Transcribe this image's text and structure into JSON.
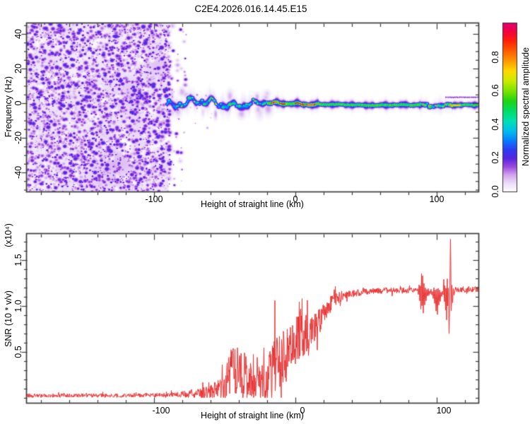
{
  "title": "C2E4.2026.016.14.45.E15",
  "chart_data": [
    {
      "type": "heatmap",
      "name": "doppler-spectrogram",
      "xlabel": "Height of straight line (km)",
      "ylabel": "Frequency (Hz)",
      "xlim": [
        -190,
        129.5
      ],
      "ylim": [
        -51,
        46
      ],
      "xticks": [
        -100,
        0,
        100
      ],
      "xtick_labels": [
        "-100",
        "0",
        "100"
      ],
      "xtick_minor_step": 20,
      "yticks": [
        -40,
        -20,
        0,
        20,
        40
      ],
      "ytick_labels": [
        "-40",
        "-20",
        "0",
        "20",
        "40"
      ],
      "ytick_minor_step": 5,
      "noise_region": {
        "x_range": [
          -190,
          -90
        ],
        "description": "dense purple speckle noise across all frequencies",
        "amp_range": [
          0.05,
          0.26
        ]
      },
      "sparse_speckles": {
        "x_range": [
          -93,
          -58
        ],
        "freq_range": [
          -25,
          25
        ],
        "count": 28
      },
      "band": {
        "x_range": [
          -91,
          129.5
        ],
        "center_freq": 0,
        "segments": [
          {
            "x": [
              -91,
              -30
            ],
            "blue_amp": 0.3,
            "blue_sig": 1.9,
            "core_amp": 0.5,
            "core_sig": 0.85,
            "core_jit": 2.4,
            "wiggle": 3.4,
            "fuzz": 0.06,
            "mode": "blob"
          },
          {
            "x": [
              -30,
              -20
            ],
            "blue_amp": 0.31,
            "blue_sig": 1.7,
            "core_amp": 0.54,
            "core_sig": 0.8,
            "core_jit": 1.6,
            "wiggle": 1.5,
            "fuzz": 0.055,
            "mode": "blob"
          },
          {
            "x": [
              -20,
              16
            ],
            "blue_amp": 0.33,
            "blue_sig": 1.9,
            "core_amp": 0.6,
            "core_sig": 1.25,
            "core_jit": 0.25,
            "wiggle": 0.8,
            "fuzz": 0.05,
            "mode": "cont"
          },
          {
            "x": [
              16,
              88
            ],
            "blue_amp": 0.3,
            "blue_sig": 1.75,
            "core_amp": 0.56,
            "core_sig": 1.1,
            "core_jit": 0.2,
            "wiggle": 0.3,
            "fuzz": 0.035,
            "mode": "cont"
          },
          {
            "x": [
              88,
              106
            ],
            "blue_amp": 0.3,
            "blue_sig": 1.4,
            "core_amp": 0.55,
            "core_sig": 0.8,
            "core_jit": 1.4,
            "wiggle": 0.9,
            "fuzz": 0.045,
            "mode": "blob"
          },
          {
            "x": [
              106,
              111
            ],
            "blue_amp": 0.32,
            "blue_sig": 1.8,
            "core_amp": 0.6,
            "core_sig": 0.95,
            "core_jit": 1.0,
            "wiggle": 0.6,
            "fuzz": 0.045,
            "mode": "blob"
          },
          {
            "x": [
              111,
              129.5
            ],
            "blue_amp": 0.3,
            "blue_sig": 1.6,
            "core_amp": 0.56,
            "core_sig": 1.0,
            "core_jit": 0.2,
            "wiggle": 0.2,
            "fuzz": 0.035,
            "mode": "cont"
          }
        ],
        "red_dashes": [
          [
            -17.5,
            -13.5
          ],
          [
            -11.5,
            -7.5
          ],
          [
            -0.5,
            6
          ],
          [
            7.5,
            14
          ]
        ],
        "orange_dots": [
          15.5
        ],
        "red_dots": [
          90,
          94.5,
          99.5,
          106,
          109
        ],
        "yellow_green_dots": [
          24,
          33,
          47,
          58,
          71,
          82
        ],
        "yellow_segment": [
          109.5,
          116.5
        ],
        "secondary_streak": {
          "x_range": [
            106,
            129.5
          ],
          "freq": 3.6,
          "amp": 0.17
        }
      },
      "colorbar": {
        "label": "Normalized spectral amplitude",
        "range": [
          0,
          1
        ],
        "ticks": [
          0,
          0.2,
          0.4,
          0.6,
          0.8
        ],
        "tick_labels": [
          "0.0",
          "0.2",
          "0.4",
          "0.6",
          "0.8"
        ],
        "colormap": [
          [
            0.0,
            "#ffffff"
          ],
          [
            0.05,
            "#ece0f8"
          ],
          [
            0.1,
            "#d2a6ee"
          ],
          [
            0.15,
            "#9a48dd"
          ],
          [
            0.2,
            "#5526e0"
          ],
          [
            0.25,
            "#2e3cf2"
          ],
          [
            0.3,
            "#0a78ff"
          ],
          [
            0.36,
            "#00bdee"
          ],
          [
            0.42,
            "#00e0b4"
          ],
          [
            0.48,
            "#00dd66"
          ],
          [
            0.54,
            "#22d414"
          ],
          [
            0.6,
            "#7ce400"
          ],
          [
            0.66,
            "#ccec00"
          ],
          [
            0.72,
            "#ffd900"
          ],
          [
            0.78,
            "#ff9600"
          ],
          [
            0.84,
            "#ff5a00"
          ],
          [
            0.9,
            "#ff1e0a"
          ],
          [
            0.96,
            "#f10048"
          ],
          [
            1.0,
            "#e4006e"
          ]
        ]
      }
    },
    {
      "type": "line",
      "name": "snr-profile",
      "xlabel": "Height of straight line (km)",
      "ylabel": "SNR (10 * v/v)",
      "ylabel_scale": "(x10⁴)",
      "color": "#e83030",
      "xlim": [
        -190,
        129.5
      ],
      "ylim": [
        -0.054,
        1.785
      ],
      "xticks": [
        -100,
        0,
        100
      ],
      "xtick_labels": [
        "-100",
        "0",
        "100"
      ],
      "xtick_minor_step": 20,
      "yticks": [
        0.5,
        1.0,
        1.5
      ],
      "ytick_labels": [
        "0.5",
        "1.0",
        "1.5"
      ],
      "ytick_minor_step": 0.1,
      "envelope": [
        [
          -190,
          0.025,
          0.022
        ],
        [
          -150,
          0.025,
          0.022
        ],
        [
          -110,
          0.026,
          0.022
        ],
        [
          -92,
          0.03,
          0.024
        ],
        [
          -84,
          0.035,
          0.03
        ],
        [
          -76,
          0.045,
          0.045
        ],
        [
          -68,
          0.05,
          0.055
        ],
        [
          -62,
          0.06,
          0.07
        ],
        [
          -56,
          0.09,
          0.1
        ],
        [
          -50,
          0.13,
          0.15
        ],
        [
          -46,
          0.27,
          0.28
        ],
        [
          -42,
          0.3,
          0.3
        ],
        [
          -38,
          0.24,
          0.26
        ],
        [
          -33,
          0.28,
          0.26
        ],
        [
          -28,
          0.24,
          0.28
        ],
        [
          -24,
          0.16,
          0.2
        ],
        [
          -20,
          0.17,
          0.22
        ],
        [
          -17,
          0.3,
          0.4
        ],
        [
          -14,
          0.42,
          0.42
        ],
        [
          -11,
          0.4,
          0.32
        ],
        [
          -8,
          0.45,
          0.3
        ],
        [
          -4,
          0.52,
          0.28
        ],
        [
          0,
          0.6,
          0.28
        ],
        [
          3,
          0.72,
          0.3
        ],
        [
          6,
          0.7,
          0.3
        ],
        [
          9,
          0.68,
          0.22
        ],
        [
          12,
          0.75,
          0.18
        ],
        [
          15,
          0.8,
          0.15
        ],
        [
          18,
          0.88,
          0.14
        ],
        [
          22,
          0.97,
          0.11
        ],
        [
          26,
          1.04,
          0.09
        ],
        [
          30,
          1.09,
          0.07
        ],
        [
          35,
          1.12,
          0.05
        ],
        [
          42,
          1.14,
          0.04
        ],
        [
          50,
          1.155,
          0.035
        ],
        [
          60,
          1.165,
          0.035
        ],
        [
          70,
          1.17,
          0.035
        ],
        [
          80,
          1.17,
          0.035
        ],
        [
          86,
          1.17,
          0.03
        ],
        [
          113,
          1.18,
          0.03
        ],
        [
          120,
          1.18,
          0.035
        ],
        [
          129.5,
          1.18,
          0.035
        ]
      ],
      "explicit_points": [
        [
          86,
          1.16
        ],
        [
          86.5,
          1.19
        ],
        [
          87,
          1.13
        ],
        [
          87.5,
          1.22
        ],
        [
          88,
          1.05
        ],
        [
          88.4,
          1.32
        ],
        [
          88.8,
          0.92
        ],
        [
          89.2,
          1.41
        ],
        [
          89.6,
          0.87
        ],
        [
          90,
          1.33
        ],
        [
          90.5,
          0.93
        ],
        [
          91,
          1.25
        ],
        [
          91.5,
          1.0
        ],
        [
          92,
          1.2
        ],
        [
          92.5,
          1.06
        ],
        [
          93,
          1.17
        ],
        [
          93.5,
          1.1
        ],
        [
          94,
          1.18
        ],
        [
          94.5,
          1.12
        ],
        [
          95,
          1.17
        ],
        [
          95.5,
          1.13
        ],
        [
          96,
          1.18
        ],
        [
          96.5,
          1.12
        ],
        [
          97,
          1.15
        ],
        [
          97.5,
          1.08
        ],
        [
          98,
          1.2
        ],
        [
          98.5,
          1.02
        ],
        [
          99,
          1.18
        ],
        [
          99.5,
          0.95
        ],
        [
          100,
          1.18
        ],
        [
          100.5,
          0.9
        ],
        [
          101,
          1.2
        ],
        [
          101.5,
          1.0
        ],
        [
          102,
          1.18
        ],
        [
          102.5,
          1.05
        ],
        [
          103,
          1.15
        ],
        [
          103.5,
          1.1
        ],
        [
          104,
          1.16
        ],
        [
          104.5,
          1.12
        ],
        [
          105,
          1.3
        ],
        [
          105.4,
          0.98
        ],
        [
          105.8,
          1.25
        ],
        [
          106.2,
          0.9
        ],
        [
          106.6,
          1.3
        ],
        [
          107,
          0.85
        ],
        [
          107.4,
          1.42
        ],
        [
          107.8,
          0.95
        ],
        [
          108.2,
          1.25
        ],
        [
          108.8,
          0.64
        ],
        [
          109.3,
          1.2
        ],
        [
          109.8,
          1.79
        ],
        [
          110.3,
          0.85
        ],
        [
          110.7,
          1.25
        ],
        [
          111.2,
          1.02
        ],
        [
          111.7,
          1.2
        ],
        [
          112.3,
          1.12
        ],
        [
          113,
          1.18
        ]
      ],
      "extra_spikes": [
        [
          -14.6,
          1.06
        ],
        [
          4.7,
          1.08
        ],
        [
          9.3,
          0.46
        ],
        [
          15.5,
          0.52
        ]
      ]
    }
  ]
}
